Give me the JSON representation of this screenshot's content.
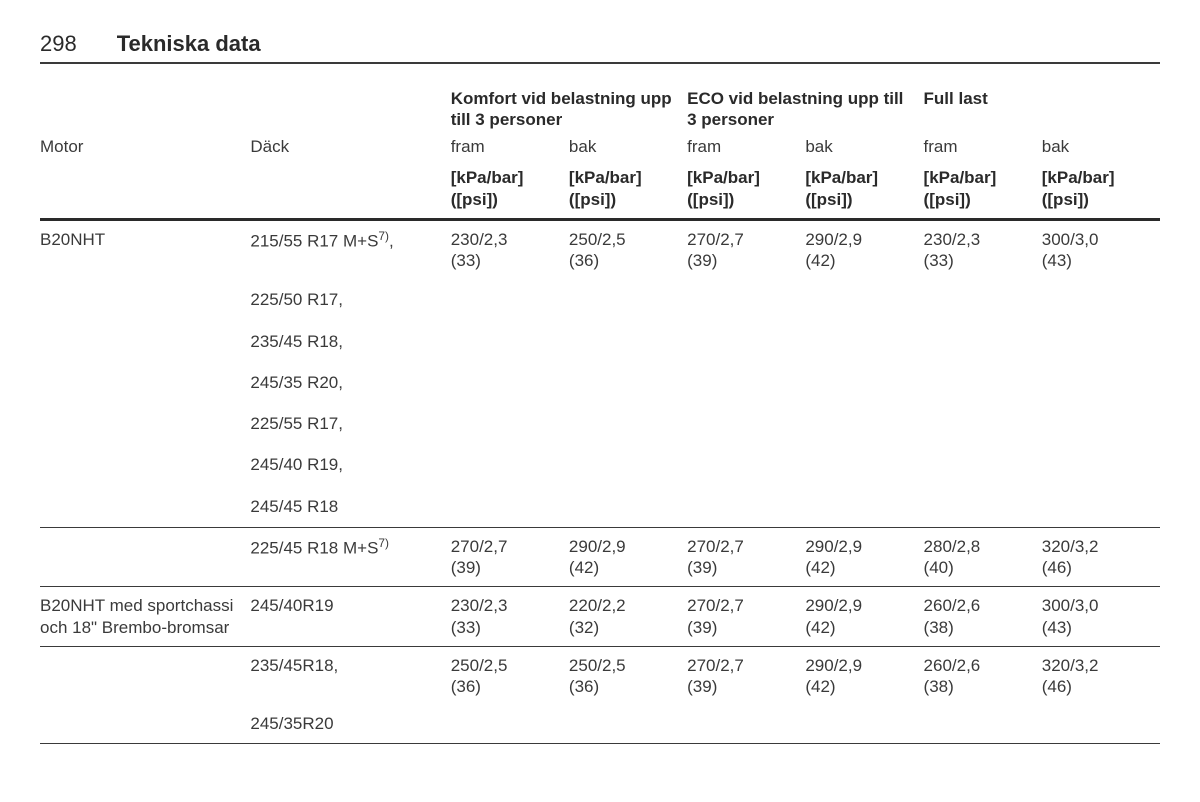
{
  "page": {
    "number": "298",
    "section_title": "Tekniska data"
  },
  "table": {
    "headers": {
      "motor": "Motor",
      "tire": "Däck",
      "groups": {
        "comfort": "Komfort vid belastning upp till 3 personer",
        "eco": "ECO vid belastning upp till 3 personer",
        "full": "Full last"
      },
      "sub": {
        "front": "fram",
        "rear": "bak"
      },
      "unit": "[kPa/bar] ([psi])"
    },
    "footnote_ref": "7)",
    "sections": [
      {
        "motor": "B20NHT",
        "rows": [
          {
            "tire_pre": "215/55 R17 M+S",
            "tire_sup": true,
            "tire_post": ",",
            "pressures": [
              "230/2,3 (33)",
              "250/2,5 (36)",
              "270/2,7 (39)",
              "290/2,9 (42)",
              "230/2,3 (33)",
              "300/3,0 (43)"
            ]
          },
          {
            "tire_pre": "225/50 R17,",
            "pressures": null
          },
          {
            "tire_pre": "235/45 R18,",
            "pressures": null
          },
          {
            "tire_pre": "245/35 R20,",
            "pressures": null
          },
          {
            "tire_pre": "225/55 R17,",
            "pressures": null
          },
          {
            "tire_pre": "245/40 R19,",
            "pressures": null
          },
          {
            "tire_pre": "245/45 R18",
            "pressures": null
          },
          {
            "sep": "thin",
            "tire_pre": "225/45 R18 M+S",
            "tire_sup": true,
            "pressures": [
              "270/2,7 (39)",
              "290/2,9 (42)",
              "270/2,7 (39)",
              "290/2,9 (42)",
              "280/2,8 (40)",
              "320/3,2 (46)"
            ]
          }
        ]
      },
      {
        "motor": "B20NHT med sportchassi och 18\" Brembo-bromsar",
        "sep": "thin",
        "rows": [
          {
            "tire_pre": "245/40R19",
            "pressures": [
              "230/2,3 (33)",
              "220/2,2 (32)",
              "270/2,7 (39)",
              "290/2,9 (42)",
              "260/2,6 (38)",
              "300/3,0 (43)"
            ]
          },
          {
            "sep": "thin",
            "tire_pre": "235/45R18,",
            "pressures": [
              "250/2,5 (36)",
              "250/2,5 (36)",
              "270/2,7 (39)",
              "290/2,9 (42)",
              "260/2,6 (38)",
              "320/3,2 (46)"
            ]
          },
          {
            "tire_pre": "245/35R20",
            "pressures": null,
            "bottom_sep": true
          }
        ]
      }
    ]
  }
}
